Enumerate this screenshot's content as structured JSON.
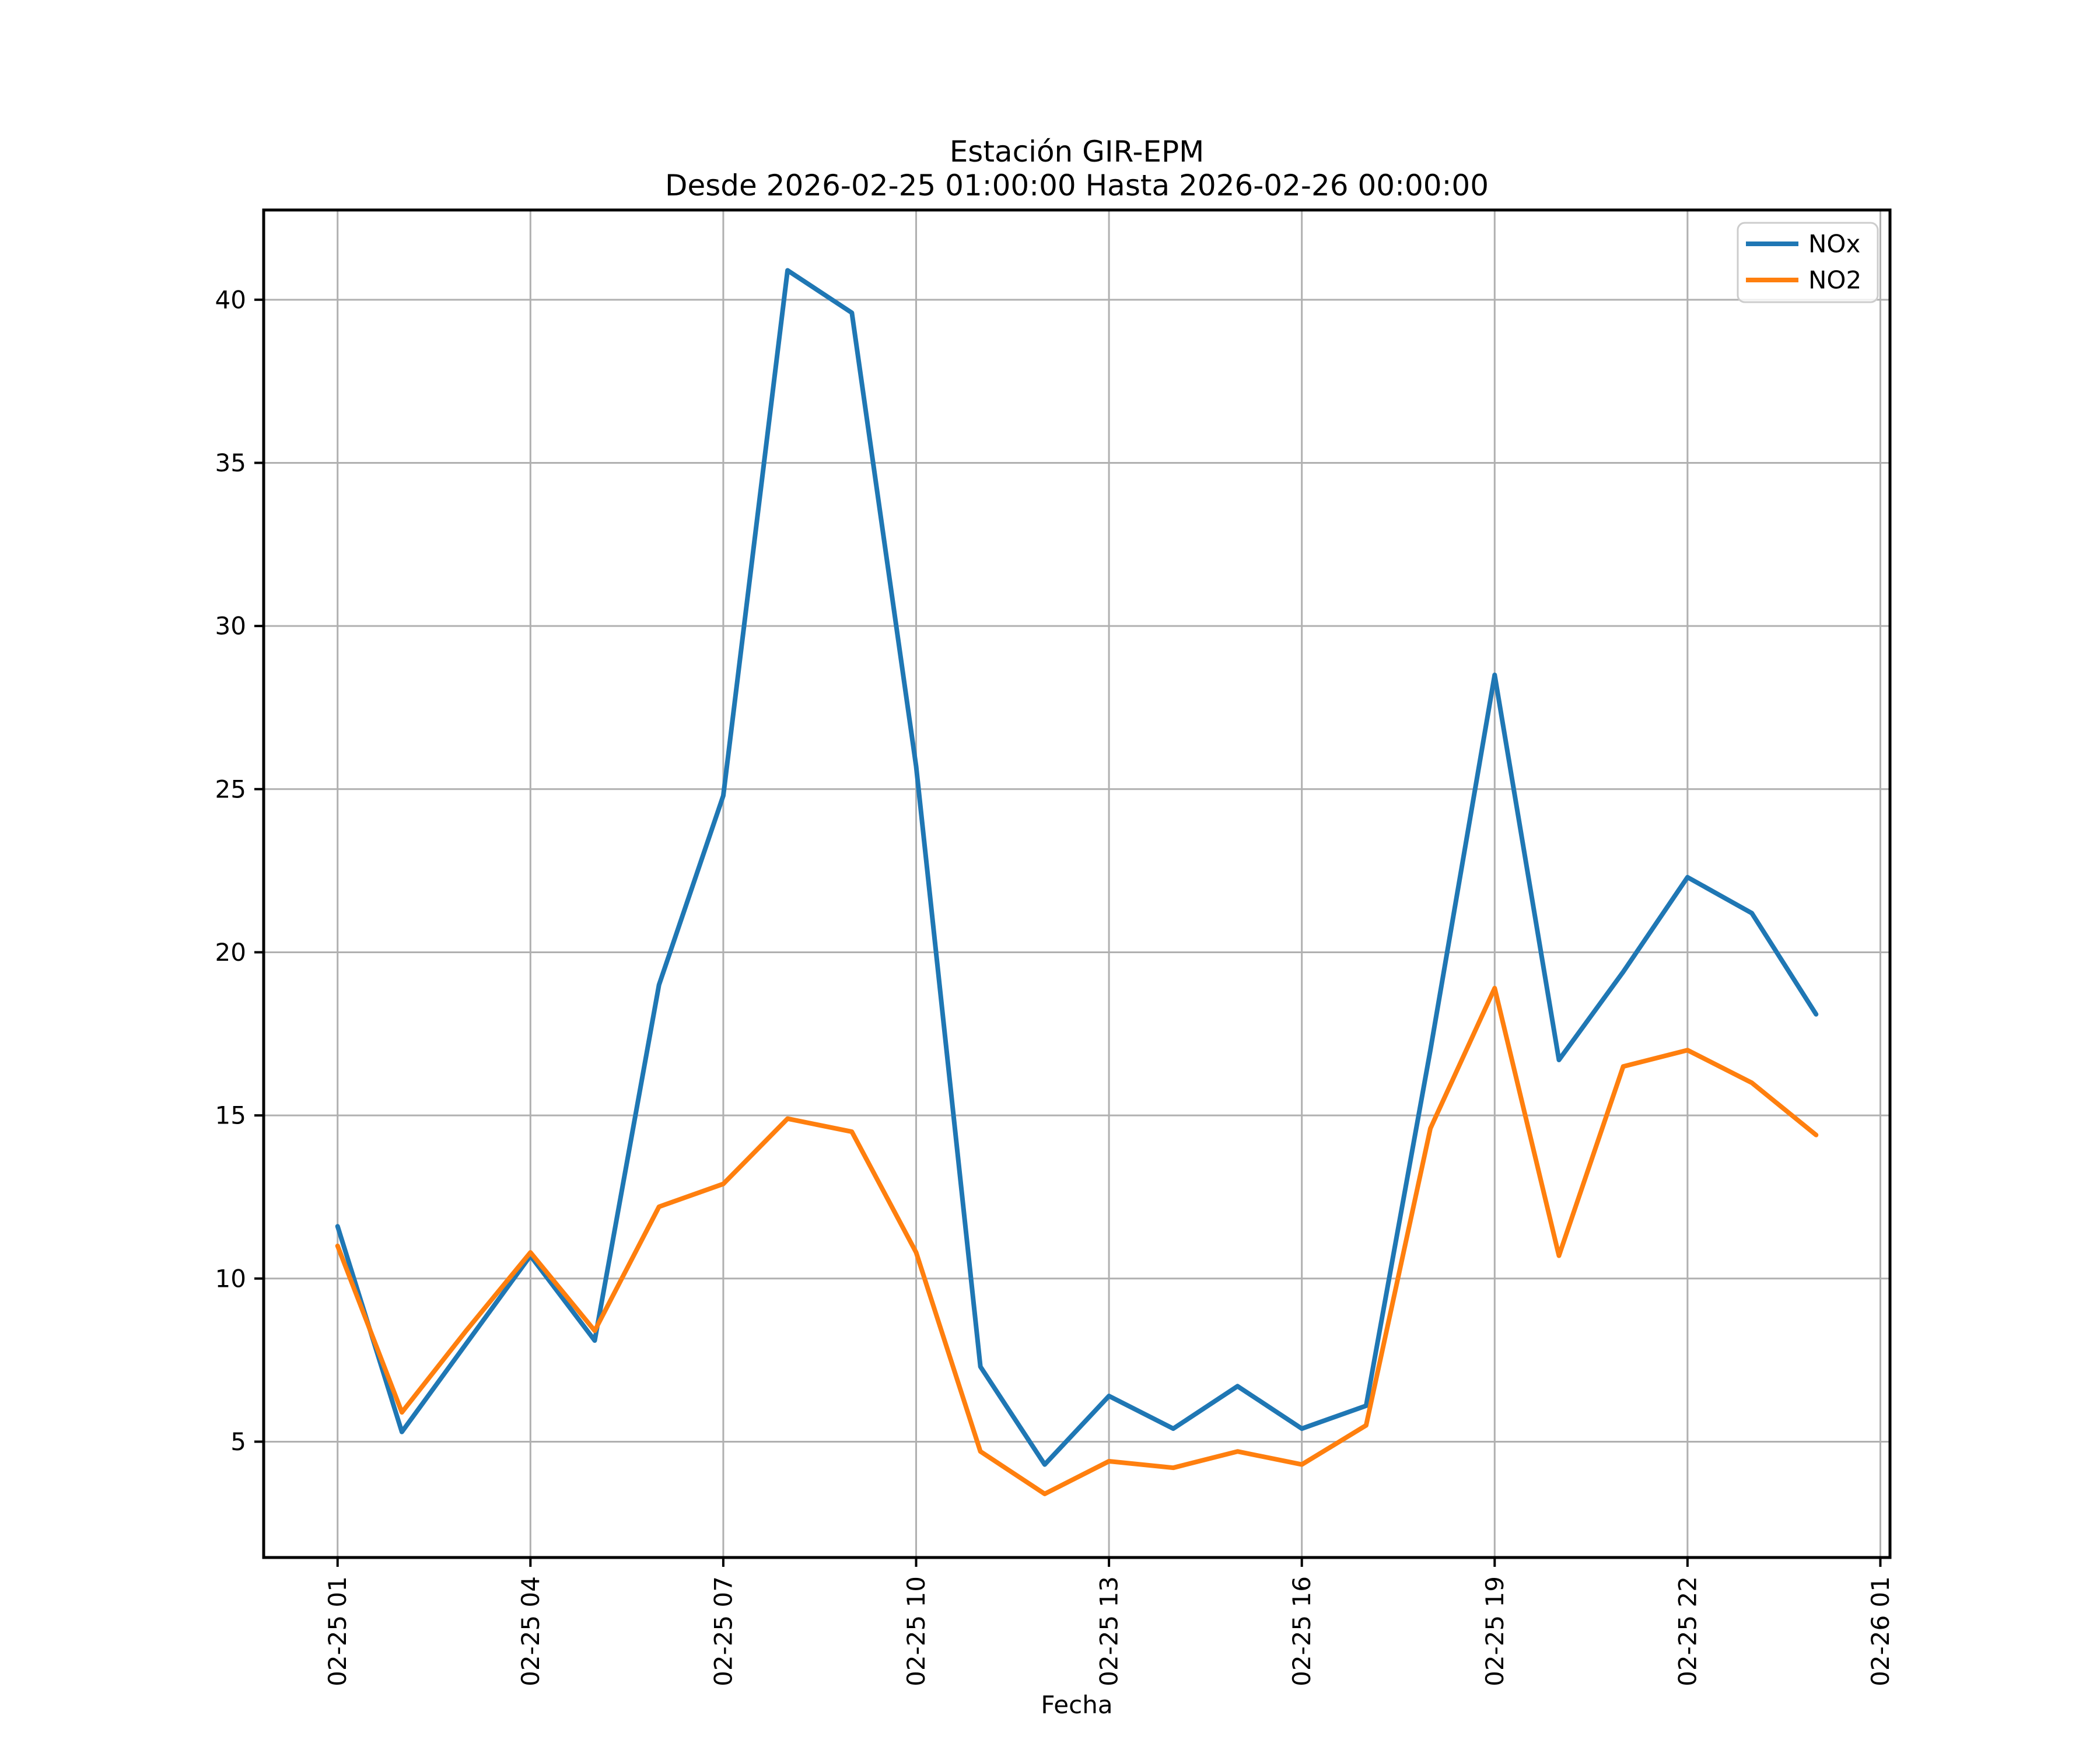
{
  "chart_data": {
    "type": "line",
    "title": "Estación GIR-EPM",
    "subtitle": "Desde 2026-02-25 01:00:00 Hasta 2026-02-26 00:00:00",
    "xlabel": "Fecha",
    "ylabel": "",
    "grid": true,
    "legend_position": "upper right",
    "grid_color": "#b0b0b0",
    "axis_color": "#000000",
    "background_color": "#ffffff",
    "x_tick_labels": [
      "02-25 01",
      "02-25 04",
      "02-25 07",
      "02-25 10",
      "02-25 13",
      "02-25 16",
      "02-25 19",
      "02-25 22",
      "02-26 01"
    ],
    "x_tick_hours": [
      1,
      4,
      7,
      10,
      13,
      16,
      19,
      22,
      25
    ],
    "y_ticks": [
      5,
      10,
      15,
      20,
      25,
      30,
      35,
      40
    ],
    "xlim": [
      -0.15,
      25.15
    ],
    "ylim": [
      1.45,
      42.75
    ],
    "x_hours": [
      1,
      2,
      3,
      4,
      5,
      6,
      7,
      8,
      9,
      10,
      11,
      12,
      13,
      14,
      15,
      16,
      17,
      18,
      19,
      20,
      21,
      22,
      23,
      24
    ],
    "series": [
      {
        "name": "NOx",
        "color": "#1f77b4",
        "values": [
          11.6,
          5.3,
          8.0,
          10.7,
          8.1,
          19.0,
          24.8,
          40.9,
          39.6,
          25.7,
          7.3,
          4.3,
          6.4,
          5.4,
          6.7,
          5.4,
          6.1,
          17.0,
          28.5,
          16.7,
          19.4,
          22.3,
          21.2,
          18.1
        ]
      },
      {
        "name": "NO2",
        "color": "#ff7f0e",
        "values": [
          11.0,
          5.9,
          8.4,
          10.8,
          8.4,
          12.2,
          12.9,
          14.9,
          14.5,
          10.8,
          4.7,
          3.4,
          4.4,
          4.2,
          4.7,
          4.3,
          5.5,
          14.6,
          18.9,
          10.7,
          16.5,
          17.0,
          16.0,
          14.4
        ]
      }
    ]
  }
}
